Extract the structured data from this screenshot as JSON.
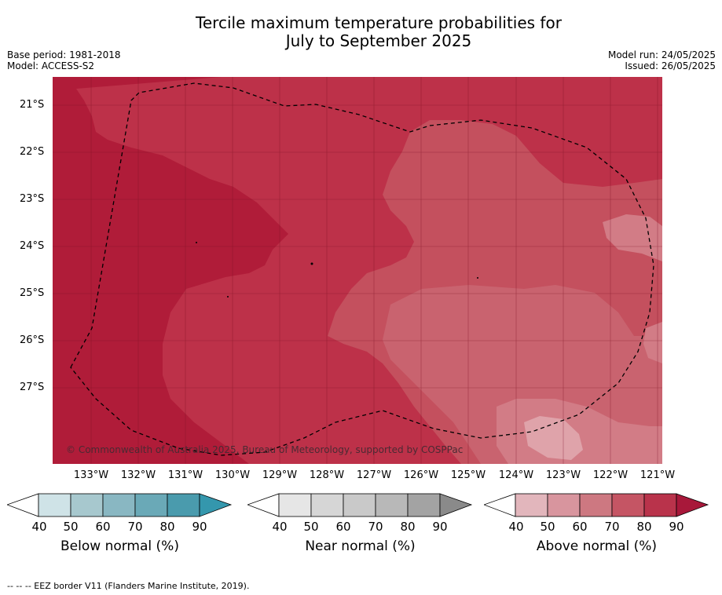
{
  "title": {
    "line1": "Tercile maximum temperature probabilities for",
    "line2": "July to September 2025"
  },
  "meta": {
    "base_period": "Base period: 1981-2018",
    "model": "Model: ACCESS-S2",
    "model_run": "Model run: 24/05/2025",
    "issued": "Issued: 26/05/2025"
  },
  "map": {
    "copyright": "© Commonwealth of Australia 2025, Bureau of Meteorology, supported by COSPPac",
    "lat_labels": [
      "21°S",
      "22°S",
      "23°S",
      "24°S",
      "25°S",
      "26°S",
      "27°S"
    ],
    "lon_labels": [
      "133°W",
      "132°W",
      "131°W",
      "130°W",
      "129°W",
      "128°W",
      "127°W",
      "126°W",
      "125°W",
      "124°W",
      "123°W",
      "122°W",
      "121°W"
    ],
    "colors": {
      "above_90": "#b01c39",
      "above_80": "#bd3149",
      "above_70": "#c4505e",
      "above_60": "#d27c86",
      "above_50": "#dfa3aa",
      "eez_border": "#000000"
    }
  },
  "colorbars": [
    {
      "label": "Below normal (%)",
      "ticks": [
        "40",
        "50",
        "60",
        "70",
        "80",
        "90"
      ],
      "colors": [
        "#cfe3e7",
        "#a7c8ce",
        "#89b7c2",
        "#6aa9b7",
        "#4a9bad",
        "#3497ad"
      ]
    },
    {
      "label": "Near normal (%)",
      "ticks": [
        "40",
        "50",
        "60",
        "70",
        "80",
        "90"
      ],
      "colors": [
        "#e6e6e6",
        "#d6d6d6",
        "#c9c9c9",
        "#b8b8b8",
        "#a3a3a3",
        "#8a8a8a"
      ]
    },
    {
      "label": "Above normal (%)",
      "ticks": [
        "40",
        "50",
        "60",
        "70",
        "80",
        "90"
      ],
      "colors": [
        "#e2b6bc",
        "#d8959e",
        "#cd7881",
        "#c55564",
        "#b9334b",
        "#a8183a"
      ]
    }
  ],
  "footer": "--  --  -- EEZ border V11 (Flanders Marine Institute, 2019)."
}
